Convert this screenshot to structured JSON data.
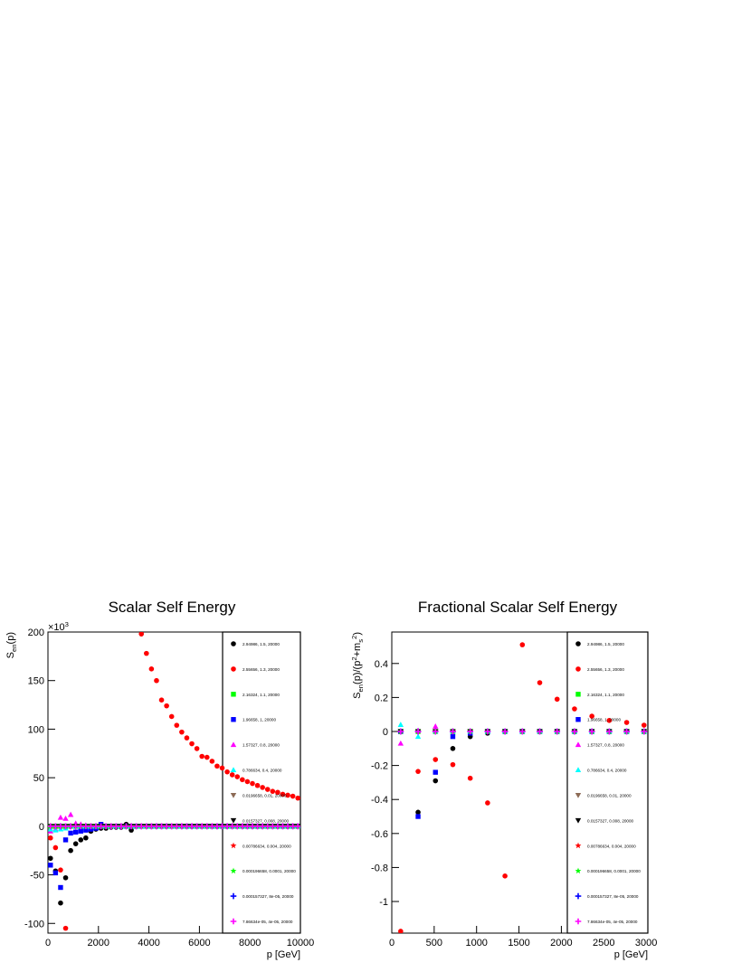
{
  "chart_data": [
    {
      "type": "scatter",
      "title": "Scalar Self Energy",
      "x_label": "p [GeV]",
      "y_label": [
        {
          "text": "S"
        },
        {
          "sub": "en"
        },
        {
          "text": "(p)"
        }
      ],
      "y_multiplier": [
        {
          "text": "×10"
        },
        {
          "sup": "3"
        }
      ],
      "legend": "right",
      "xlim": [
        0,
        10000
      ],
      "ylim": [
        -110,
        200
      ],
      "xticks": [
        0,
        2000,
        4000,
        6000,
        8000,
        10000
      ],
      "yticks": [
        -100,
        -50,
        0,
        50,
        100,
        150,
        200
      ],
      "x": [
        100,
        300,
        500,
        700,
        900,
        1100,
        1300,
        1500,
        1700,
        1900,
        2100,
        2300,
        2500,
        2700,
        2900,
        3100,
        3300,
        3500,
        3700,
        3900,
        4100,
        4300,
        4500,
        4700,
        4900,
        5100,
        5300,
        5500,
        5700,
        5900,
        6100,
        6300,
        6500,
        6700,
        6900,
        7100,
        7300,
        7500,
        7700,
        7900,
        8100,
        8300,
        8500,
        8700,
        8900,
        9100,
        9300,
        9500,
        9700,
        9900
      ],
      "series": [
        {
          "name": "2.94986, 1.5, 20000",
          "color": "#000000",
          "marker": "circle",
          "values": [
            -33,
            -46,
            -79,
            -53,
            -25,
            -18,
            -14,
            -12,
            -5,
            -3,
            -2,
            -2,
            -1,
            -1,
            -1,
            2,
            -4,
            0,
            0,
            0,
            0,
            0,
            0,
            0,
            0,
            0,
            0,
            0,
            0,
            0,
            0,
            0,
            0,
            0,
            0,
            0,
            0,
            0,
            0,
            0,
            0,
            0,
            0,
            0,
            0,
            0,
            0,
            0,
            0,
            0
          ]
        },
        {
          "name": "2.55656, 1.3, 20000",
          "color": "#ff0000",
          "marker": "circle",
          "values": [
            -12,
            -22,
            -45,
            -105,
            null,
            null,
            null,
            null,
            null,
            null,
            null,
            null,
            null,
            null,
            null,
            null,
            null,
            null,
            198,
            178,
            162,
            150,
            130,
            124,
            113,
            104,
            97,
            91,
            85,
            80,
            72,
            71,
            67,
            62,
            60,
            56,
            53,
            51,
            48,
            46,
            44,
            42,
            40,
            38,
            36,
            35,
            33,
            32,
            31,
            29
          ]
        },
        {
          "name": "2.16324, 1.1, 20000",
          "color": "#00ff00",
          "marker": "square",
          "values": [
            0,
            0,
            0,
            0,
            0,
            0,
            0,
            0,
            0,
            0,
            0,
            0,
            0,
            0,
            0,
            0,
            0,
            0,
            0,
            0,
            0,
            0,
            0,
            0,
            0,
            0,
            0,
            0,
            0,
            0,
            0,
            0,
            0,
            0,
            0,
            0,
            0,
            0,
            0,
            0,
            0,
            0,
            0,
            0,
            0,
            0,
            0,
            0,
            0,
            0
          ]
        },
        {
          "name": "1.96658, 1, 20000",
          "color": "#0000ff",
          "marker": "square",
          "values": [
            -40,
            -48,
            -63,
            -14,
            -7,
            -6,
            -5,
            -4,
            -3,
            -2,
            2,
            0,
            0,
            0,
            0,
            0,
            0,
            0,
            0,
            0,
            0,
            0,
            0,
            0,
            0,
            0,
            0,
            0,
            0,
            0,
            0,
            0,
            0,
            0,
            0,
            0,
            0,
            0,
            0,
            0,
            0,
            0,
            0,
            0,
            0,
            0,
            0,
            0,
            0,
            0
          ]
        },
        {
          "name": "1.57327, 0.8, 20000",
          "color": "#ff00ff",
          "marker": "triangle-up",
          "values": [
            -5,
            -3,
            9,
            8,
            12,
            3,
            2,
            1,
            0,
            0,
            0,
            0,
            0,
            0,
            0,
            0,
            0,
            0,
            0,
            0,
            0,
            0,
            0,
            0,
            0,
            0,
            0,
            0,
            0,
            0,
            0,
            0,
            0,
            0,
            0,
            0,
            0,
            0,
            0,
            0,
            0,
            0,
            0,
            0,
            0,
            0,
            0,
            0,
            0,
            0
          ]
        },
        {
          "name": "0.786634, 0.4, 20000",
          "color": "#00ffff",
          "marker": "triangle-up",
          "values": [
            -3,
            -4,
            -3,
            -2,
            0,
            0,
            0,
            0,
            0,
            0,
            0,
            0,
            0,
            0,
            0,
            0,
            0,
            0,
            0,
            0,
            0,
            0,
            0,
            0,
            0,
            0,
            0,
            0,
            0,
            0,
            0,
            0,
            0,
            0,
            0,
            0,
            0,
            0,
            0,
            0,
            0,
            0,
            0,
            0,
            0,
            0,
            0,
            0,
            0,
            0
          ]
        },
        {
          "name": "0.0196658, 0.01, 20000",
          "color": "#8c6a55",
          "marker": "triangle-down",
          "values": [
            0,
            0,
            0,
            0,
            0,
            0,
            0,
            0,
            0,
            0,
            0,
            0,
            0,
            0,
            0,
            0,
            0,
            0,
            0,
            0,
            0,
            0,
            0,
            0,
            0,
            0,
            0,
            0,
            0,
            0,
            0,
            0,
            0,
            0,
            0,
            0,
            0,
            0,
            0,
            0,
            0,
            0,
            0,
            0,
            0,
            0,
            0,
            0,
            0,
            0
          ]
        },
        {
          "name": "0.0157327, 0.008, 20000",
          "color": "#000000",
          "marker": "triangle-down",
          "values": [
            0,
            0,
            0,
            0,
            0,
            0,
            0,
            0,
            0,
            0,
            0,
            0,
            0,
            0,
            0,
            0,
            0,
            0,
            0,
            0,
            0,
            0,
            0,
            0,
            0,
            0,
            0,
            0,
            0,
            0,
            0,
            0,
            0,
            0,
            0,
            0,
            0,
            0,
            0,
            0,
            0,
            0,
            0,
            0,
            0,
            0,
            0,
            0,
            0,
            0
          ]
        },
        {
          "name": "0.00786634, 0.004, 20000",
          "color": "#ff0000",
          "marker": "star",
          "values": [
            0,
            0,
            0,
            0,
            0,
            0,
            0,
            0,
            0,
            0,
            0,
            0,
            0,
            0,
            0,
            0,
            0,
            0,
            0,
            0,
            0,
            0,
            0,
            0,
            0,
            0,
            0,
            0,
            0,
            0,
            0,
            0,
            0,
            0,
            0,
            0,
            0,
            0,
            0,
            0,
            0,
            0,
            0,
            0,
            0,
            0,
            0,
            0,
            0,
            0
          ]
        },
        {
          "name": "0.000196658, 0.0001, 20000",
          "color": "#00ff00",
          "marker": "star",
          "values": [
            0,
            0,
            0,
            0,
            0,
            0,
            0,
            0,
            0,
            0,
            0,
            0,
            0,
            0,
            0,
            0,
            0,
            0,
            0,
            0,
            0,
            0,
            0,
            0,
            0,
            0,
            0,
            0,
            0,
            0,
            0,
            0,
            0,
            0,
            0,
            0,
            0,
            0,
            0,
            0,
            0,
            0,
            0,
            0,
            0,
            0,
            0,
            0,
            0,
            0
          ]
        },
        {
          "name": "0.000157327, 8e-05, 20000",
          "color": "#0000ff",
          "marker": "plus",
          "values": [
            0,
            0,
            0,
            0,
            0,
            0,
            0,
            0,
            0,
            0,
            0,
            0,
            0,
            0,
            0,
            0,
            0,
            0,
            0,
            0,
            0,
            0,
            0,
            0,
            0,
            0,
            0,
            0,
            0,
            0,
            0,
            0,
            0,
            0,
            0,
            0,
            0,
            0,
            0,
            0,
            0,
            0,
            0,
            0,
            0,
            0,
            0,
            0,
            0,
            0
          ]
        },
        {
          "name": "7.86634e-05, 4e-05, 20000",
          "color": "#ff00ff",
          "marker": "plus",
          "values": [
            0,
            0,
            0,
            0,
            0,
            0,
            0,
            0,
            0,
            0,
            0,
            0,
            0,
            0,
            0,
            0,
            0,
            0,
            0,
            0,
            0,
            0,
            0,
            0,
            0,
            0,
            0,
            0,
            0,
            0,
            0,
            0,
            0,
            0,
            0,
            0,
            0,
            0,
            0,
            0,
            0,
            0,
            0,
            0,
            0,
            0,
            0,
            0,
            0,
            0
          ]
        }
      ]
    },
    {
      "type": "scatter",
      "title": "Fractional Scalar Self Energy",
      "x_label": "p [GeV]",
      "y_label": [
        {
          "text": "S"
        },
        {
          "sub": "en"
        },
        {
          "text": "(p)/(p"
        },
        {
          "sup": "2"
        },
        {
          "text": "+m"
        },
        {
          "sub": "s"
        },
        {
          "sup": "2"
        },
        {
          "text": ")"
        }
      ],
      "legend": "right",
      "xlim": [
        0,
        3020
      ],
      "ylim": [
        -1.186,
        0.585
      ],
      "xticks": [
        0,
        500,
        1000,
        1500,
        2000,
        2500,
        3000
      ],
      "yticks": [
        -1,
        -0.8,
        -0.6,
        -0.4,
        -0.2,
        0,
        0.2,
        0.4
      ],
      "x": [
        105,
        310,
        515,
        720,
        925,
        1130,
        1335,
        1540,
        1745,
        1950,
        2155,
        2360,
        2565,
        2770,
        2975
      ],
      "series": [
        {
          "name": "2.94986, 1.5, 20000",
          "color": "#000000",
          "marker": "circle",
          "values": [
            0,
            -0.475,
            -0.29,
            -0.1,
            -0.03,
            -0.01,
            0,
            0,
            0,
            0,
            0,
            0,
            0,
            0,
            0
          ]
        },
        {
          "name": "2.55656, 1.3, 20000",
          "color": "#ff0000",
          "marker": "circle",
          "values": [
            -1.175,
            -0.235,
            -0.165,
            -0.195,
            -0.275,
            -0.42,
            -0.85,
            0.51,
            0.287,
            0.19,
            0.133,
            0.09,
            0.065,
            0.053,
            0.037
          ]
        },
        {
          "name": "2.16324, 1.1, 20000",
          "color": "#00ff00",
          "marker": "square",
          "values": [
            0,
            0,
            0,
            0,
            0,
            0,
            0,
            0,
            0,
            0,
            0,
            0,
            0,
            0,
            0
          ]
        },
        {
          "name": "1.96658, 1, 20000",
          "color": "#0000ff",
          "marker": "square",
          "values": [
            0,
            -0.5,
            -0.24,
            -0.03,
            -0.01,
            0,
            0,
            0,
            0,
            0,
            0,
            0,
            0,
            0,
            0
          ]
        },
        {
          "name": "1.57327, 0.8, 20000",
          "color": "#ff00ff",
          "marker": "triangle-up",
          "values": [
            -0.07,
            0.005,
            0.03,
            0,
            0,
            0,
            0,
            0,
            0,
            0,
            0,
            0,
            0,
            0,
            0
          ]
        },
        {
          "name": "0.786634, 0.4, 20000",
          "color": "#00ffff",
          "marker": "triangle-up",
          "values": [
            0.04,
            -0.03,
            0,
            0,
            0,
            0,
            0,
            0,
            0,
            0,
            0,
            0,
            0,
            0,
            0
          ]
        },
        {
          "name": "0.0196658, 0.01, 20000",
          "color": "#8c6a55",
          "marker": "triangle-down",
          "values": [
            0,
            0,
            0,
            0,
            0,
            0,
            0,
            0,
            0,
            0,
            0,
            0,
            0,
            0,
            0
          ]
        },
        {
          "name": "0.0157327, 0.008, 20000",
          "color": "#000000",
          "marker": "triangle-down",
          "values": [
            0,
            0,
            0,
            0,
            0,
            0,
            0,
            0,
            0,
            0,
            0,
            0,
            0,
            0,
            0
          ]
        },
        {
          "name": "0.00786634, 0.004, 20000",
          "color": "#ff0000",
          "marker": "star",
          "values": [
            0,
            0,
            0,
            0,
            0,
            0,
            0,
            0,
            0,
            0,
            0,
            0,
            0,
            0,
            0
          ]
        },
        {
          "name": "0.000196658, 0.0001, 20000",
          "color": "#00ff00",
          "marker": "star",
          "values": [
            0,
            0,
            0,
            0,
            0,
            0,
            0,
            0,
            0,
            0,
            0,
            0,
            0,
            0,
            0
          ]
        },
        {
          "name": "0.000157327, 8e-05, 20000",
          "color": "#0000ff",
          "marker": "plus",
          "values": [
            0,
            0,
            0,
            0,
            0,
            0,
            0,
            0,
            0,
            0,
            0,
            0,
            0,
            0,
            0
          ]
        },
        {
          "name": "7.86634e-05, 4e-05, 20000",
          "color": "#ff00ff",
          "marker": "plus",
          "values": [
            0,
            0,
            0,
            0,
            0,
            0,
            0,
            0,
            0,
            0,
            0,
            0,
            0,
            0,
            0
          ]
        }
      ]
    }
  ]
}
